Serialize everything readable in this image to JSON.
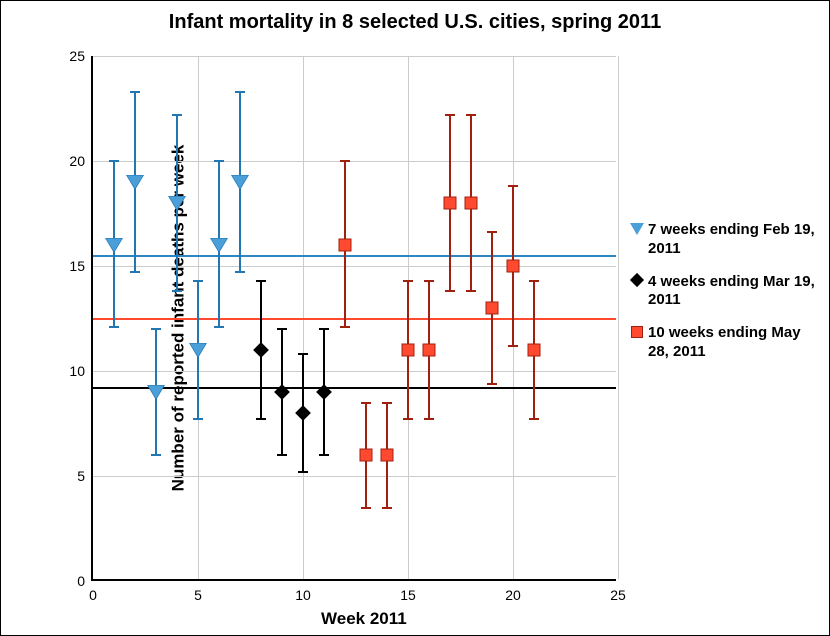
{
  "chart": {
    "type": "scatter-with-errorbars",
    "title": "Infant mortality in 8 selected U.S. cities, spring 2011",
    "title_fontsize": 20,
    "xlabel": "Week 2011",
    "ylabel": "Number of reported infant deaths per week",
    "label_fontsize": 17,
    "tick_fontsize": 14,
    "xlim": [
      0,
      25
    ],
    "ylim": [
      0,
      25
    ],
    "xticks": [
      0,
      5,
      10,
      15,
      20,
      25
    ],
    "yticks": [
      0,
      5,
      10,
      15,
      20,
      25
    ],
    "background_color": "#ffffff",
    "grid_color": "#cccccc",
    "plot_border_color": "#000000",
    "series": [
      {
        "name": "7 weeks ending Feb 19, 2011",
        "marker": "triangle-down",
        "color_fill": "#4a9fd8",
        "color_edge": "#2276b3",
        "mean_line": {
          "value": 15.5,
          "color": "#2d86c4",
          "width": 2
        },
        "points": [
          {
            "x": 1,
            "y": 16,
            "err_low": 12.1,
            "err_high": 20.0
          },
          {
            "x": 2,
            "y": 19,
            "err_low": 14.7,
            "err_high": 23.3
          },
          {
            "x": 3,
            "y": 9,
            "err_low": 6.0,
            "err_high": 12.0
          },
          {
            "x": 4,
            "y": 18,
            "err_low": 13.8,
            "err_high": 22.2
          },
          {
            "x": 5,
            "y": 11,
            "err_low": 7.7,
            "err_high": 14.3
          },
          {
            "x": 6,
            "y": 16,
            "err_low": 12.1,
            "err_high": 20.0
          },
          {
            "x": 7,
            "y": 19,
            "err_low": 14.7,
            "err_high": 23.3
          }
        ]
      },
      {
        "name": "4 weeks ending Mar 19, 2011",
        "marker": "diamond",
        "color_fill": "#000000",
        "color_edge": "#000000",
        "mean_line": {
          "value": 9.2,
          "color": "#000000",
          "width": 2
        },
        "points": [
          {
            "x": 8,
            "y": 11,
            "err_low": 7.7,
            "err_high": 14.3
          },
          {
            "x": 9,
            "y": 9,
            "err_low": 6.0,
            "err_high": 12.0
          },
          {
            "x": 10,
            "y": 8,
            "err_low": 5.2,
            "err_high": 10.8
          },
          {
            "x": 11,
            "y": 9,
            "err_low": 6.0,
            "err_high": 12.0
          }
        ]
      },
      {
        "name": "10 weeks ending May 28, 2011",
        "marker": "square",
        "color_fill": "#ff4a2f",
        "color_edge": "#a02010",
        "mean_line": {
          "value": 12.5,
          "color": "#ff4a2f",
          "width": 2
        },
        "points": [
          {
            "x": 12,
            "y": 16,
            "err_low": 12.1,
            "err_high": 20.0
          },
          {
            "x": 13,
            "y": 6,
            "err_low": 3.5,
            "err_high": 8.5
          },
          {
            "x": 14,
            "y": 6,
            "err_low": 3.5,
            "err_high": 8.5
          },
          {
            "x": 15,
            "y": 11,
            "err_low": 7.7,
            "err_high": 14.3
          },
          {
            "x": 16,
            "y": 11,
            "err_low": 7.7,
            "err_high": 14.3
          },
          {
            "x": 17,
            "y": 18,
            "err_low": 13.8,
            "err_high": 22.2
          },
          {
            "x": 18,
            "y": 18,
            "err_low": 13.8,
            "err_high": 22.2
          },
          {
            "x": 19,
            "y": 13,
            "err_low": 9.4,
            "err_high": 16.6
          },
          {
            "x": 20,
            "y": 15,
            "err_low": 11.2,
            "err_high": 18.8
          },
          {
            "x": 21,
            "y": 11,
            "err_low": 7.7,
            "err_high": 14.3
          }
        ]
      }
    ],
    "legend": {
      "position": "right",
      "fontsize": 15
    }
  }
}
